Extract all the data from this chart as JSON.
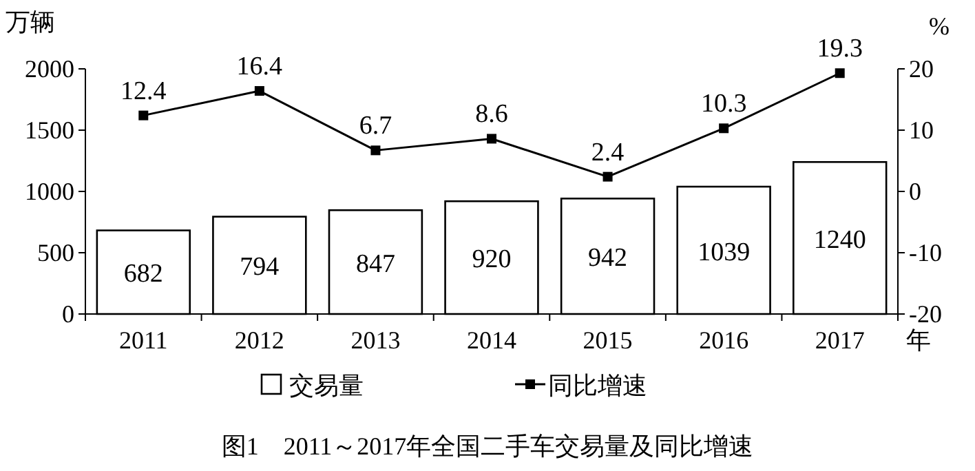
{
  "chart_data": {
    "type": "bar",
    "title": "图1　2011～2017年全国二手车交易量及同比增速",
    "xlabel": "年",
    "ylabel": "万辆",
    "y2label": "%",
    "categories": [
      "2011",
      "2012",
      "2013",
      "2014",
      "2015",
      "2016",
      "2017"
    ],
    "series": [
      {
        "name": "交易量",
        "color": "#ffffff",
        "values": [
          682,
          794,
          847,
          920,
          942,
          1039,
          1240
        ]
      },
      {
        "name": "同比增速",
        "type": "line",
        "axis": "y2",
        "color": "#000000",
        "marker": "square",
        "values": [
          12.4,
          16.4,
          6.7,
          8.6,
          2.4,
          10.3,
          19.3
        ]
      }
    ],
    "ylim": [
      0,
      2000
    ],
    "yticks": [
      0,
      500,
      1000,
      1500,
      2000
    ],
    "y2lim": [
      -20,
      20
    ],
    "y2ticks": [
      -20,
      -10,
      0,
      10,
      20
    ],
    "data_labels": true,
    "legend": "bottom",
    "grid": false
  }
}
